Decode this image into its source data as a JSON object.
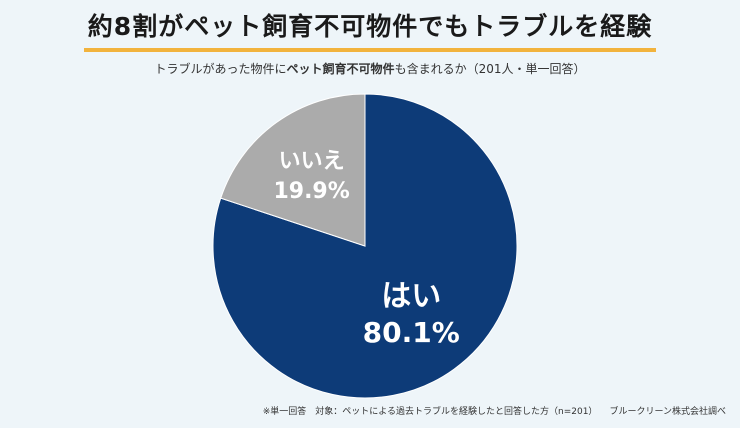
{
  "title": "約8割がペット飼育不可物件でもトラブルを経験",
  "subtitle": {
    "pre": "トラブルがあった物件に",
    "bold": "ペット飼育不可物件",
    "post": "も含まれるか（201人・単一回答）"
  },
  "footer": {
    "note": "※単一回答　対象：ペットによる過去トラブルを経験したと回答した方（n=201）",
    "source": "ブルークリーン株式会社調べ"
  },
  "colors": {
    "yes": "#0d3b78",
    "no": "#ababab",
    "label": "#ffffff",
    "accent_underline": "#f2b33d"
  },
  "chart_data": {
    "type": "pie",
    "title": "約8割がペット飼育不可物件でもトラブルを経験",
    "slices": [
      {
        "label": "はい",
        "value": 80.1,
        "display": "80.1%"
      },
      {
        "label": "いいえ",
        "value": 19.9,
        "display": "19.9%"
      }
    ],
    "start": "12 o'clock",
    "direction": "clockwise"
  }
}
